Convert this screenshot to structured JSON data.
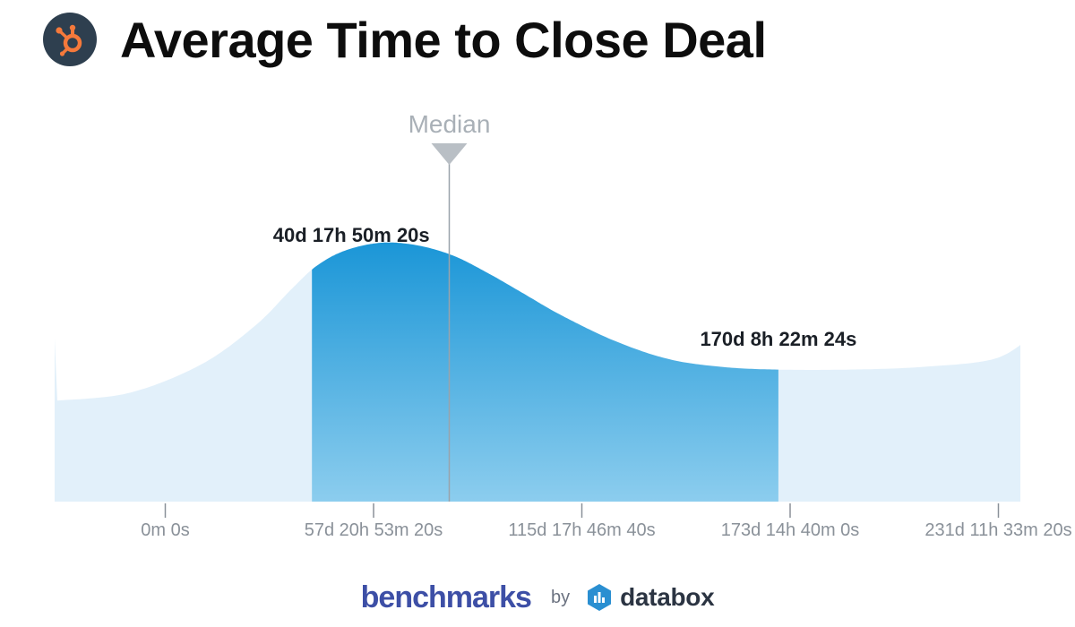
{
  "header": {
    "title": "Average Time to Close Deal",
    "logo_icon": "hubspot-sprocket-icon"
  },
  "chart_data": {
    "type": "area",
    "title": "Average Time to Close Deal",
    "x_unit": "days",
    "xlim": [
      -30,
      240
    ],
    "tick_values": [
      0,
      57.87,
      115.74,
      173.61,
      231.48
    ],
    "tick_labels": [
      "0m 0s",
      "57d 20h 53m 20s",
      "115d 17h 46m 40s",
      "173d 14h 40m 0s",
      "231d 11h 33m 20s"
    ],
    "curve": {
      "x": [
        -30,
        -10,
        10,
        25,
        35,
        42,
        50,
        60,
        70,
        80,
        90,
        100,
        110,
        125,
        140,
        155,
        170,
        190,
        210,
        230,
        240
      ],
      "y": [
        0.39,
        0.42,
        0.53,
        0.68,
        0.82,
        0.91,
        0.97,
        1.0,
        0.99,
        0.95,
        0.88,
        0.8,
        0.72,
        0.62,
        0.55,
        0.52,
        0.51,
        0.51,
        0.52,
        0.55,
        0.63
      ]
    },
    "highlight_range": [
      40.75,
      170.35
    ],
    "highlight_labels": {
      "low": "40d 17h 50m 20s",
      "high": "170d 8h 22m 24s"
    },
    "median": {
      "label": "Median",
      "value": 78.9
    },
    "colors": {
      "background_area": "#e2f0fa",
      "highlight_top": "#1b96d7",
      "highlight_bottom": "#8ccdee",
      "median_line": "#9aa3ab",
      "median_label": "#a9b0b7",
      "ticks": "#8a9199"
    }
  },
  "footer": {
    "brand": "benchmarks",
    "by": "by",
    "partner": "databox",
    "partner_icon": "databox-logo-icon"
  }
}
